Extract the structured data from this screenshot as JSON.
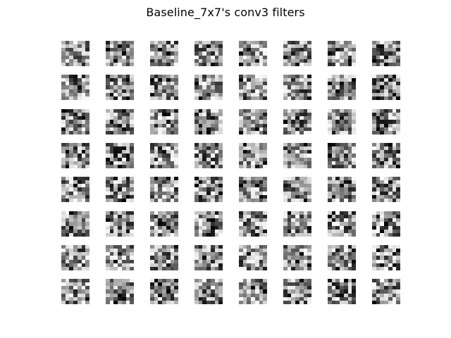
{
  "title": "Baseline_7x7's conv3 filters",
  "grid": {
    "rows": 8,
    "cols": 8,
    "kernel_size": 7,
    "colormap": "grayscale"
  }
}
